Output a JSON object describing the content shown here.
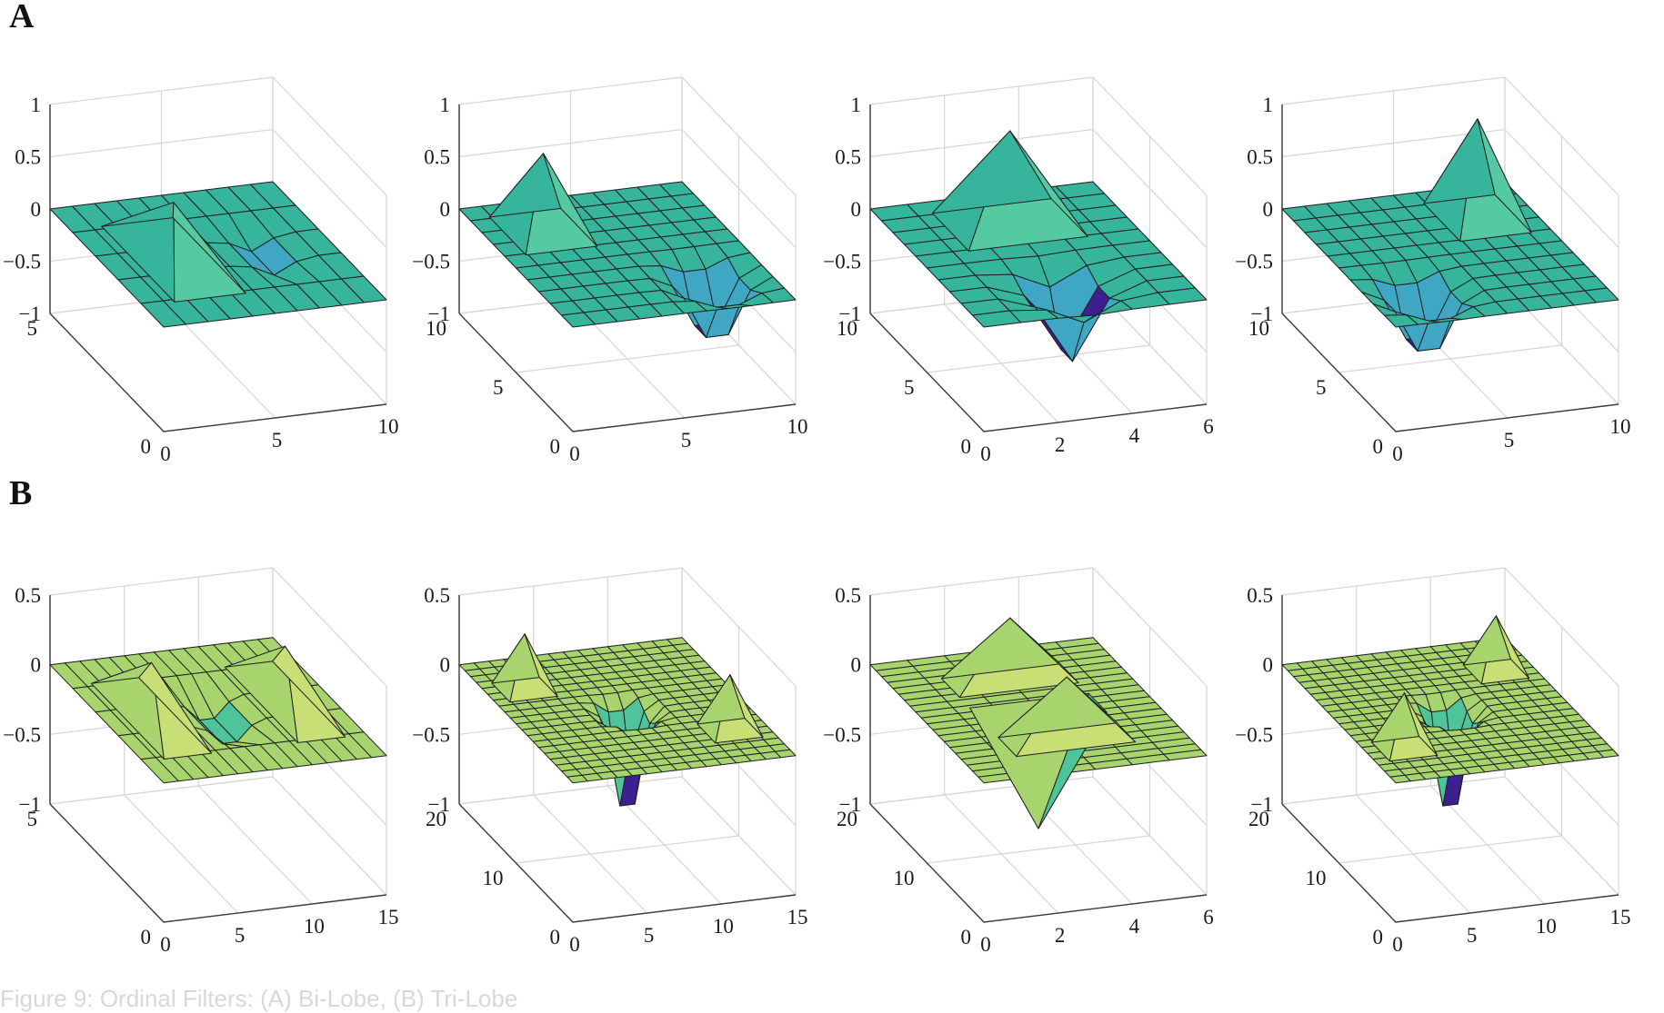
{
  "figure": {
    "caption": "Figure 9: Ordinal Filters: (A) Bi-Lobe, (B) Tri-Lobe"
  },
  "panels": [
    {
      "label": "A",
      "colors": {
        "positive": "#55c9a2",
        "neutral": "#36b49c",
        "negative": "#3fa6c4",
        "extreme": "#3d1f8f"
      },
      "chart_data": [
        {
          "type": "surface",
          "nx": 11,
          "ny": 6,
          "xlim": [
            0,
            10
          ],
          "ylim": [
            0,
            5
          ],
          "zlim": [
            -1,
            1
          ],
          "xticks": [
            "0",
            "5",
            "10"
          ],
          "yticks": [
            "0",
            "5"
          ],
          "zticks": [
            "1",
            "0.5",
            "0",
            "−0.5",
            "−1"
          ],
          "lobes": [
            {
              "x": 3,
              "y": 2.5,
              "z": 0.55,
              "sigma": 0.01
            },
            {
              "x": 7,
              "y": 2.5,
              "z": -0.55,
              "sigma": 0.6
            }
          ]
        },
        {
          "type": "surface",
          "nx": 11,
          "ny": 11,
          "xlim": [
            0,
            10
          ],
          "ylim": [
            0,
            10
          ],
          "zlim": [
            -1,
            1
          ],
          "xticks": [
            "0",
            "5",
            "10"
          ],
          "yticks": [
            "0",
            "5",
            "10"
          ],
          "zticks": [
            "1",
            "0.5",
            "0",
            "−0.5",
            "−1"
          ],
          "lobes": [
            {
              "x": 2.5,
              "y": 7.5,
              "z": 0.75,
              "sigma": 0.01
            },
            {
              "x": 7.5,
              "y": 2.5,
              "z": -0.75,
              "sigma": 0.8
            }
          ]
        },
        {
          "type": "surface",
          "nx": 7,
          "ny": 11,
          "xlim": [
            0,
            6
          ],
          "ylim": [
            0,
            10
          ],
          "zlim": [
            -1,
            1
          ],
          "xticks": [
            "0",
            "2",
            "4",
            "6"
          ],
          "yticks": [
            "0",
            "5",
            "10"
          ],
          "zticks": [
            "1",
            "0.5",
            "0",
            "−0.5",
            "−1"
          ],
          "lobes": [
            {
              "x": 3,
              "y": 7.5,
              "z": 0.9,
              "sigma": 0.01
            },
            {
              "x": 3,
              "y": 2.5,
              "z": -0.8,
              "sigma": 0.9
            }
          ]
        },
        {
          "type": "surface",
          "nx": 11,
          "ny": 11,
          "xlim": [
            0,
            10
          ],
          "ylim": [
            0,
            10
          ],
          "zlim": [
            -1,
            1
          ],
          "xticks": [
            "0",
            "5",
            "10"
          ],
          "yticks": [
            "0",
            "5",
            "10"
          ],
          "zticks": [
            "1",
            "0.5",
            "0",
            "−0.5",
            "−1"
          ],
          "lobes": [
            {
              "x": 7.5,
              "y": 7.5,
              "z": 0.95,
              "sigma": 0.01
            },
            {
              "x": 2.5,
              "y": 2.5,
              "z": -0.75,
              "sigma": 0.8
            }
          ]
        }
      ]
    },
    {
      "label": "B",
      "colors": {
        "positive": "#c8df76",
        "neutral": "#a8d46e",
        "negative": "#4fc49b",
        "extreme": "#3d1f8f"
      },
      "chart_data": [
        {
          "type": "surface",
          "nx": 16,
          "ny": 6,
          "xlim": [
            0,
            15
          ],
          "ylim": [
            0,
            5
          ],
          "zlim": [
            -1,
            0.5
          ],
          "xticks": [
            "0",
            "5",
            "10",
            "15"
          ],
          "yticks": [
            "0",
            "5"
          ],
          "zticks": [
            "0.5",
            "0",
            "−0.5",
            "−1"
          ],
          "lobes": [
            {
              "x": 3,
              "y": 2.5,
              "z": 0.4,
              "sigma": 0.01
            },
            {
              "x": 7.5,
              "y": 2.5,
              "z": -0.7,
              "sigma": 0.6
            },
            {
              "x": 12,
              "y": 2.5,
              "z": 0.4,
              "sigma": 0.01
            }
          ]
        },
        {
          "type": "surface",
          "nx": 16,
          "ny": 21,
          "xlim": [
            0,
            15
          ],
          "ylim": [
            0,
            20
          ],
          "zlim": [
            -1,
            0.5
          ],
          "xticks": [
            "0",
            "5",
            "10",
            "15"
          ],
          "yticks": [
            "0",
            "10",
            "20"
          ],
          "zticks": [
            "0.5",
            "0",
            "−0.5",
            "−1"
          ],
          "lobes": [
            {
              "x": 2.5,
              "y": 15,
              "z": 0.4,
              "sigma": 0.01
            },
            {
              "x": 7.5,
              "y": 10,
              "z": -0.85,
              "sigma": 0.5
            },
            {
              "x": 12.5,
              "y": 5,
              "z": 0.4,
              "sigma": 0.01
            }
          ]
        },
        {
          "type": "surface",
          "nx": 7,
          "ny": 21,
          "xlim": [
            0,
            6
          ],
          "ylim": [
            0,
            20
          ],
          "zlim": [
            -1,
            0.5
          ],
          "xticks": [
            "0",
            "2",
            "4",
            "6"
          ],
          "yticks": [
            "0",
            "10",
            "20"
          ],
          "zticks": [
            "0.5",
            "0",
            "−0.5",
            "−1"
          ],
          "lobes": [
            {
              "x": 3,
              "y": 15,
              "z": 0.45,
              "sigma": 0.01
            },
            {
              "x": 3,
              "y": 10,
              "z": -0.85,
              "sigma": 0.01
            },
            {
              "x": 3,
              "y": 5,
              "z": 0.45,
              "sigma": 0.01
            }
          ]
        },
        {
          "type": "surface",
          "nx": 16,
          "ny": 21,
          "xlim": [
            0,
            15
          ],
          "ylim": [
            0,
            20
          ],
          "zlim": [
            -1,
            0.5
          ],
          "xticks": [
            "0",
            "5",
            "10",
            "15"
          ],
          "yticks": [
            "0",
            "10",
            "20"
          ],
          "zticks": [
            "0.5",
            "0",
            "−0.5",
            "−1"
          ],
          "lobes": [
            {
              "x": 2.5,
              "y": 5,
              "z": 0.4,
              "sigma": 0.01
            },
            {
              "x": 7.5,
              "y": 10,
              "z": -0.85,
              "sigma": 0.5
            },
            {
              "x": 12.5,
              "y": 15,
              "z": 0.4,
              "sigma": 0.01
            }
          ]
        }
      ]
    }
  ]
}
